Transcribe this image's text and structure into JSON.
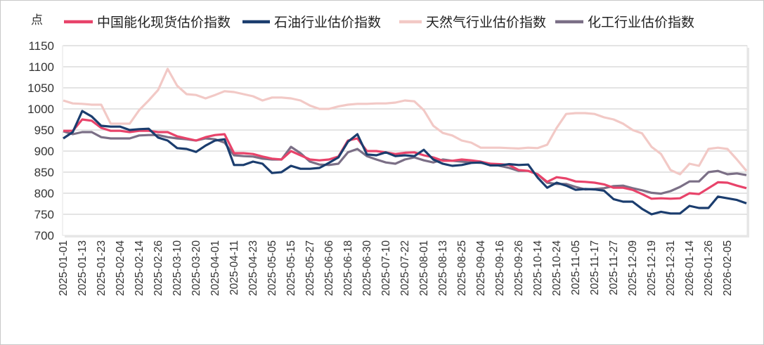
{
  "chart_data": {
    "type": "line",
    "ylabel": "点",
    "ylim": [
      700,
      1150
    ],
    "yticks": [
      700,
      750,
      800,
      850,
      900,
      950,
      1000,
      1050,
      1100,
      1150
    ],
    "grid": true,
    "legend": "top",
    "x_tick_labels": [
      "2025-01-01",
      "2025-01-13",
      "2025-01-23",
      "2025-02-04",
      "2025-02-14",
      "2025-02-26",
      "2025-03-10",
      "2025-03-20",
      "2025-04-01",
      "2025-04-11",
      "2025-04-23",
      "2025-05-05",
      "2025-05-15",
      "2025-05-27",
      "2025-06-06",
      "2025-06-18",
      "2025-06-30",
      "2025-07-10",
      "2025-07-22",
      "2025-08-01",
      "2025-08-13",
      "2025-08-25",
      "2025-09-04",
      "2025-09-16",
      "2025-09-26",
      "2025-10-14",
      "2025-10-24",
      "2025-11-05",
      "2025-11-17",
      "2025-11-27",
      "2025-12-09",
      "2025-12-19",
      "2025-12-31",
      "2026-01-14",
      "2026-01-26",
      "2026-02-05"
    ],
    "series": [
      {
        "name": "中国能化现货估价指数",
        "color": "#e8436a",
        "values": [
          948,
          948,
          975,
          972,
          955,
          948,
          948,
          945,
          948,
          948,
          945,
          945,
          935,
          930,
          925,
          933,
          938,
          940,
          895,
          895,
          893,
          887,
          882,
          880,
          900,
          890,
          880,
          878,
          880,
          887,
          925,
          930,
          900,
          900,
          897,
          893,
          896,
          897,
          890,
          885,
          877,
          877,
          880,
          878,
          875,
          870,
          869,
          867,
          855,
          853,
          845,
          827,
          838,
          835,
          828,
          827,
          825,
          821,
          813,
          813,
          808,
          798,
          787,
          788,
          787,
          788,
          800,
          798,
          812,
          826,
          825,
          818,
          812
        ]
      },
      {
        "name": "石油行业估价指数",
        "color": "#1b3d6e",
        "values": [
          930,
          945,
          995,
          982,
          960,
          958,
          958,
          950,
          952,
          953,
          932,
          925,
          907,
          905,
          898,
          913,
          925,
          928,
          867,
          867,
          875,
          870,
          848,
          850,
          865,
          858,
          858,
          860,
          872,
          885,
          922,
          940,
          892,
          890,
          897,
          888,
          890,
          888,
          903,
          880,
          870,
          865,
          867,
          872,
          873,
          866,
          866,
          869,
          867,
          868,
          837,
          813,
          825,
          818,
          808,
          810,
          809,
          806,
          786,
          780,
          780,
          763,
          750,
          756,
          752,
          752,
          770,
          765,
          765,
          792,
          788,
          784,
          776
        ]
      },
      {
        "name": "天然气行业估价指数",
        "color": "#f2c9c6",
        "values": [
          1020,
          1013,
          1012,
          1010,
          1010,
          965,
          965,
          965,
          997,
          1020,
          1045,
          1095,
          1055,
          1035,
          1033,
          1025,
          1033,
          1042,
          1040,
          1035,
          1030,
          1020,
          1027,
          1027,
          1025,
          1020,
          1008,
          1000,
          1000,
          1006,
          1010,
          1012,
          1012,
          1013,
          1013,
          1015,
          1020,
          1018,
          997,
          960,
          943,
          937,
          925,
          920,
          908,
          908,
          908,
          907,
          906,
          908,
          907,
          915,
          955,
          988,
          990,
          990,
          988,
          980,
          975,
          965,
          950,
          942,
          910,
          893,
          855,
          845,
          870,
          865,
          905,
          908,
          905,
          880,
          853
        ]
      },
      {
        "name": "化工行业估价指数",
        "color": "#7b6f86",
        "values": [
          947,
          940,
          945,
          945,
          933,
          930,
          930,
          930,
          937,
          938,
          938,
          933,
          930,
          928,
          925,
          930,
          928,
          920,
          890,
          888,
          887,
          882,
          880,
          880,
          910,
          895,
          875,
          868,
          867,
          870,
          897,
          905,
          888,
          880,
          873,
          870,
          880,
          885,
          878,
          873,
          880,
          877,
          875,
          873,
          872,
          870,
          865,
          860,
          853,
          853,
          845,
          825,
          822,
          822,
          815,
          809,
          810,
          812,
          817,
          818,
          812,
          807,
          801,
          799,
          805,
          815,
          828,
          828,
          850,
          853,
          845,
          847,
          843
        ]
      }
    ]
  }
}
